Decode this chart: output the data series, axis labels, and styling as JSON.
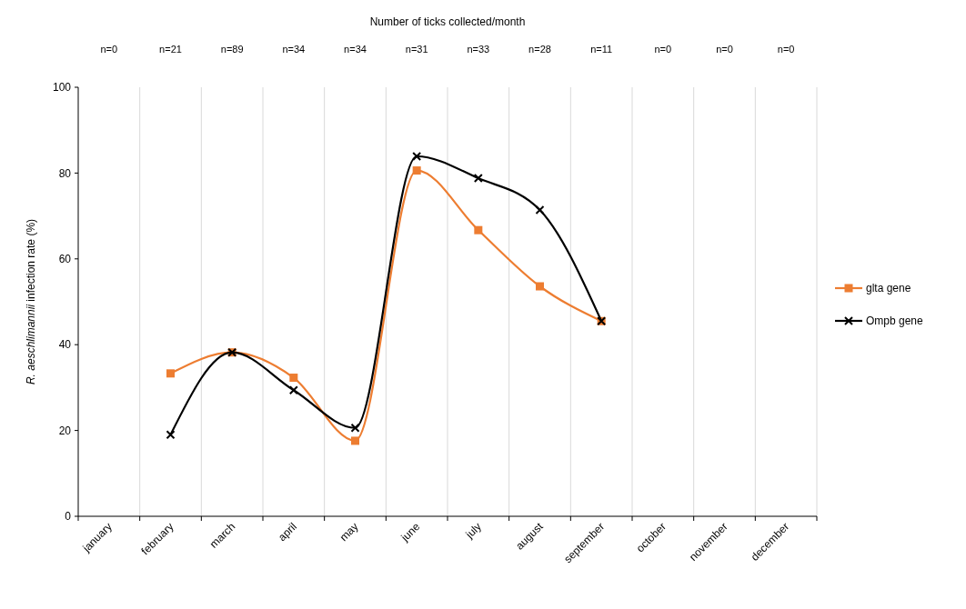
{
  "chart_data": {
    "type": "line",
    "subtitle": "Number of ticks collected/month",
    "annotations": [
      "n=0",
      "n=21",
      "n=89",
      "n=34",
      "n=34",
      "n=31",
      "n=33",
      "n=28",
      "n=11",
      "n=0",
      "n=0",
      "n=0"
    ],
    "ylabel": "R. aeschlimannii infection rate (%)",
    "categories": [
      "january",
      "february",
      "march",
      "april",
      "may",
      "june",
      "july",
      "august",
      "september",
      "october",
      "november",
      "december"
    ],
    "ylim": [
      0,
      100
    ],
    "yticks": [
      0,
      20,
      40,
      60,
      80,
      100
    ],
    "grid": "x",
    "legend": "right",
    "series": [
      {
        "name": "glta gene",
        "color": "#ed7d31",
        "marker": "square",
        "values": [
          null,
          33.3,
          38.2,
          32.3,
          17.6,
          80.6,
          66.7,
          53.6,
          45.5,
          null,
          null,
          null
        ]
      },
      {
        "name": "Ompb gene",
        "color": "#000000",
        "marker": "cross",
        "values": [
          null,
          19.0,
          38.2,
          29.4,
          20.6,
          83.9,
          78.8,
          71.4,
          45.5,
          null,
          null,
          null
        ]
      }
    ]
  }
}
